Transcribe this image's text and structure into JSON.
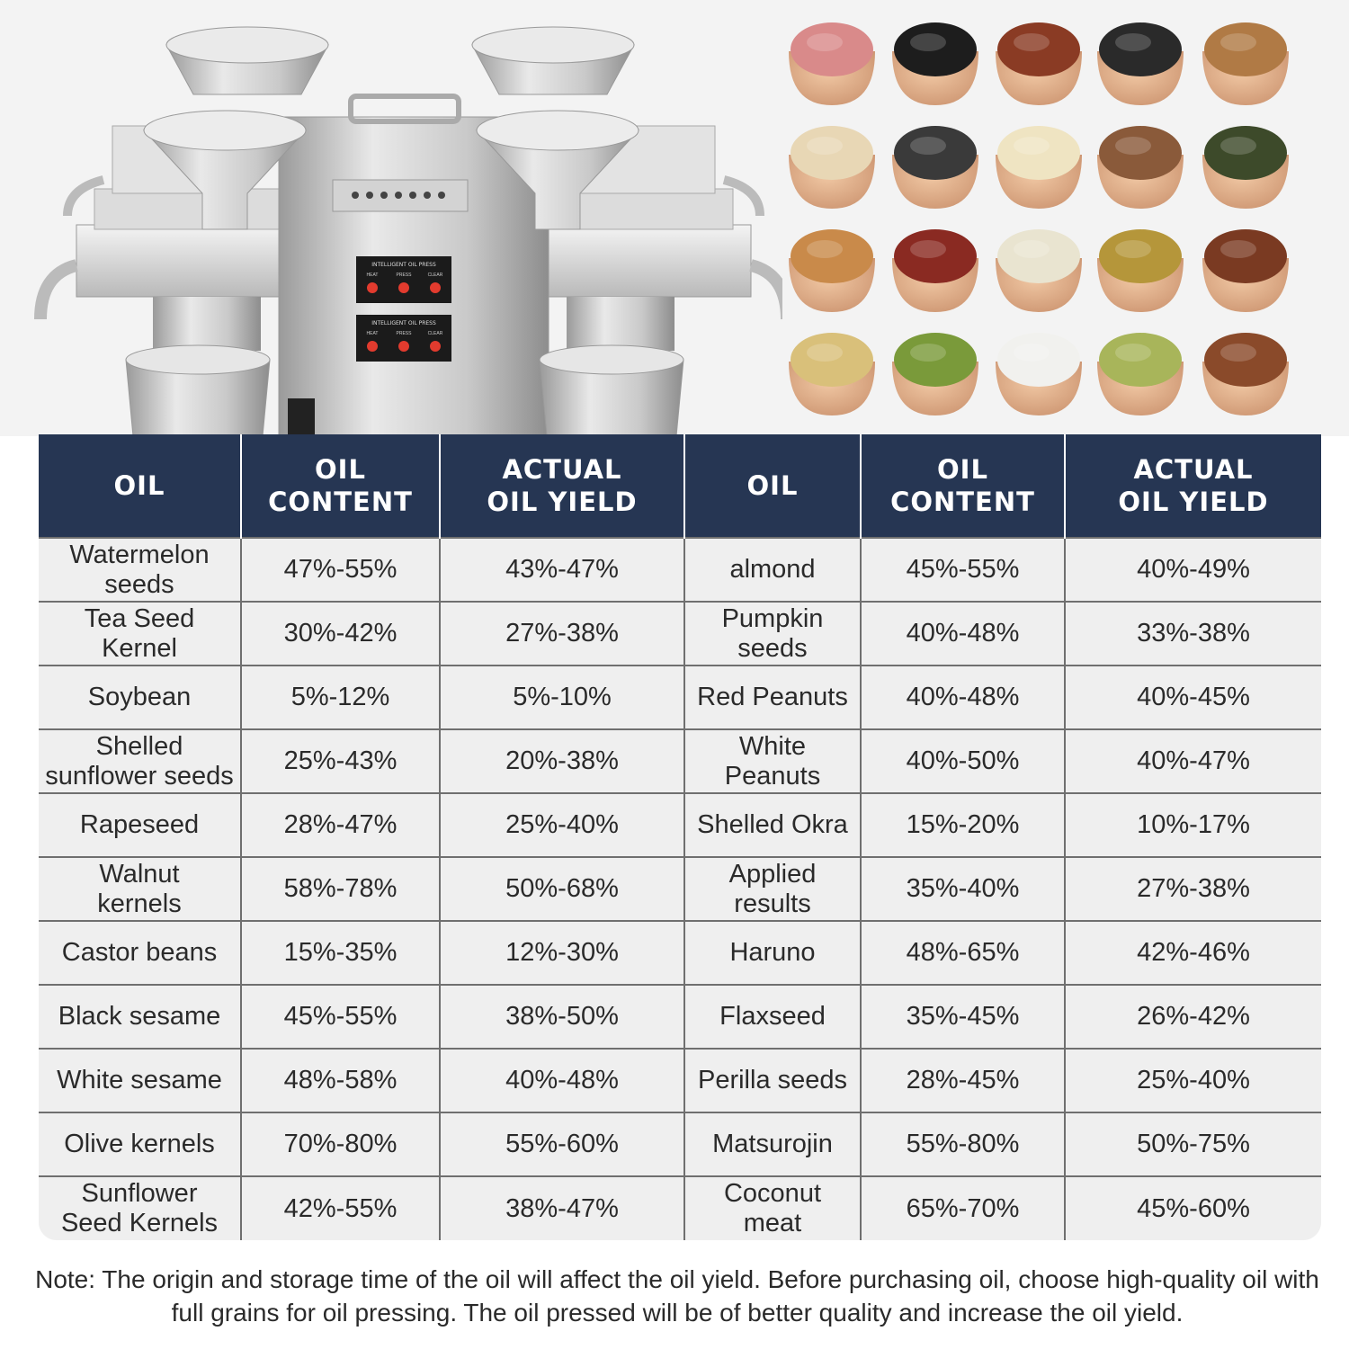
{
  "hero": {
    "machine_image": "stainless-oil-press-machine",
    "panel_label": "INTELLIGENT OIL PRESS",
    "panel_buttons": [
      "HEAT",
      "PRESS",
      "CLEAR"
    ],
    "seed_bowls_image": "seed-bowls-grid"
  },
  "table": {
    "headers": [
      "OIL",
      "OIL\nCONTENT",
      "ACTUAL\nOIL YIELD",
      "OIL",
      "OIL\nCONTENT",
      "ACTUAL\nOIL YIELD"
    ],
    "rows": [
      [
        "Watermelon seeds",
        "47%-55%",
        "43%-47%",
        "almond",
        "45%-55%",
        "40%-49%"
      ],
      [
        "Tea Seed Kernel",
        "30%-42%",
        "27%-38%",
        "Pumpkin seeds",
        "40%-48%",
        "33%-38%"
      ],
      [
        "Soybean",
        "5%-12%",
        "5%-10%",
        "Red Peanuts",
        "40%-48%",
        "40%-45%"
      ],
      [
        "Shelled sunflower seeds",
        "25%-43%",
        "20%-38%",
        "White Peanuts",
        "40%-50%",
        "40%-47%"
      ],
      [
        "Rapeseed",
        "28%-47%",
        "25%-40%",
        "Shelled Okra",
        "15%-20%",
        "10%-17%"
      ],
      [
        "Walnut kernels",
        "58%-78%",
        "50%-68%",
        "Applied results",
        "35%-40%",
        "27%-38%"
      ],
      [
        "Castor beans",
        "15%-35%",
        "12%-30%",
        "Haruno",
        "48%-65%",
        "42%-46%"
      ],
      [
        "Black sesame",
        "45%-55%",
        "38%-50%",
        "Flaxseed",
        "35%-45%",
        "26%-42%"
      ],
      [
        "White sesame",
        "48%-58%",
        "40%-48%",
        "Perilla seeds",
        "28%-45%",
        "25%-40%"
      ],
      [
        "Olive kernels",
        "70%-80%",
        "55%-60%",
        "Matsurojin",
        "55%-80%",
        "50%-75%"
      ],
      [
        "Sunflower Seed Kernels",
        "42%-55%",
        "38%-47%",
        "Coconut meat",
        "65%-70%",
        "45%-60%"
      ]
    ]
  },
  "note": "Note: The origin and storage time of the oil will affect the oil yield. Before purchasing oil, choose high-quality oil with full grains for oil pressing. The oil pressed will be of better quality and increase the oil yield.",
  "colors": {
    "header_bg": "#263653",
    "cell_bg": "#efefef",
    "grid": "#6f6f6f",
    "wood": "#e3b48f"
  }
}
